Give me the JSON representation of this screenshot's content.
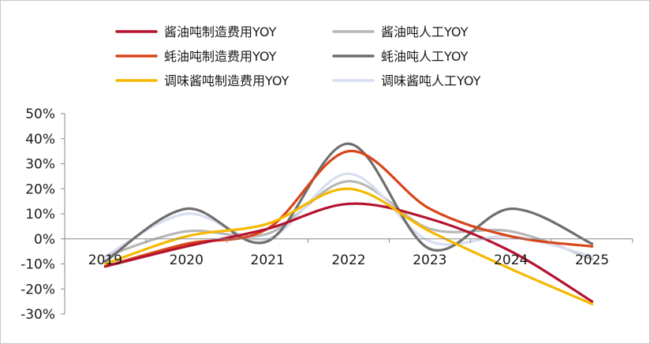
{
  "chart_data": {
    "type": "line",
    "title": "",
    "xlabel": "",
    "ylabel": "",
    "x": [
      "2019",
      "2020",
      "2021",
      "2022",
      "2023",
      "2024",
      "2025"
    ],
    "ylim": [
      -30,
      50
    ],
    "yticks": [
      "50%",
      "40%",
      "30%",
      "20%",
      "10%",
      "0%",
      "-10%",
      "-20%",
      "-30%"
    ],
    "y_unit": "%",
    "grid": false,
    "legend_position": "top",
    "series": [
      {
        "name": "酱油吨制造费用YOY",
        "color": "#b5122f",
        "values": [
          -11,
          -3,
          4,
          14,
          8,
          -5,
          -25
        ]
      },
      {
        "name": "酱油吨人工YOY",
        "color": "#b7b7b7",
        "values": [
          -7,
          3,
          2,
          23,
          4,
          3,
          -8
        ]
      },
      {
        "name": "蚝油吨制造费用YOY",
        "color": "#d9451a",
        "values": [
          -11,
          -2,
          4,
          35,
          12,
          1,
          -3
        ]
      },
      {
        "name": "蚝油吨人工YOY",
        "color": "#6e6e6e",
        "values": [
          -9,
          12,
          -1,
          38,
          -4,
          12,
          -2
        ]
      },
      {
        "name": "调味酱吨制造费用YOY",
        "color": "#f5b800",
        "values": [
          -10,
          1,
          6,
          20,
          3,
          -12,
          -26
        ]
      },
      {
        "name": "调味酱吨人工YOY",
        "color": "#d8def0",
        "values": [
          -7,
          10,
          0,
          26,
          -1,
          1,
          -7
        ]
      }
    ]
  }
}
